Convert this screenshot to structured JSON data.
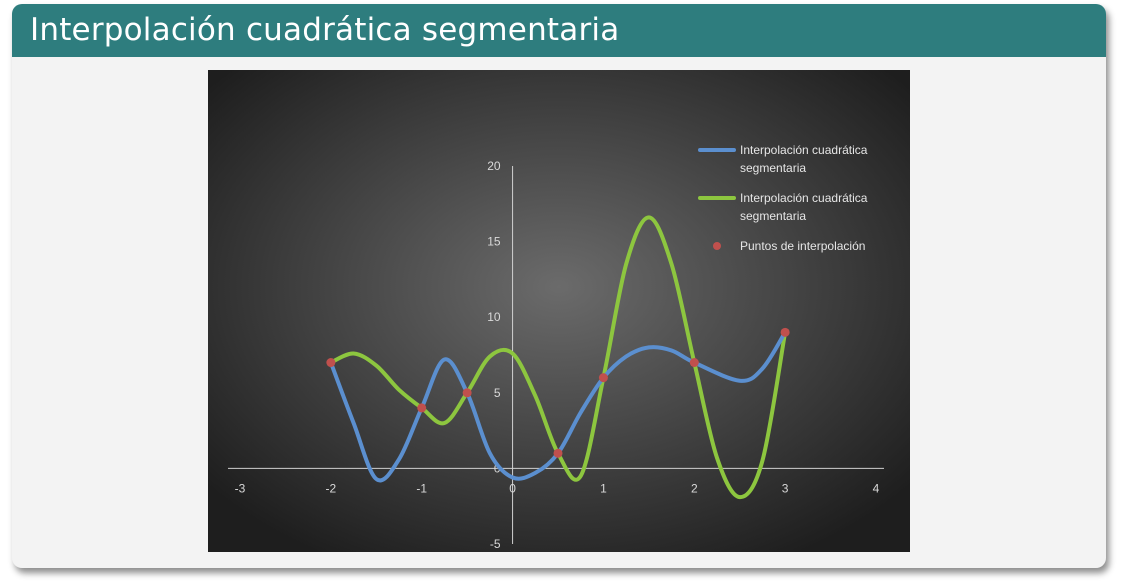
{
  "slide": {
    "title": "Interpolación cuadrática segmentaria"
  },
  "chart_data": {
    "type": "scatter",
    "xlim": [
      -3,
      4
    ],
    "ylim": [
      -5,
      20
    ],
    "x_ticks": [
      -3,
      -2,
      -1,
      0,
      1,
      2,
      3,
      4
    ],
    "y_ticks": [
      -5,
      0,
      5,
      10,
      15,
      20
    ],
    "grid": false,
    "legend_position": "top-right",
    "colors": {
      "background_center": "#6b6b6b",
      "background_edge": "#1e1e1e",
      "axis": "#d0d0d0"
    },
    "series": [
      {
        "name": "Interpolación cuadrática segmentaria",
        "kind": "line",
        "color": "#5b8fcf",
        "points": [
          [
            -2,
            7
          ],
          [
            -1.75,
            3
          ],
          [
            -1.5,
            -0.7
          ],
          [
            -1.25,
            0.6
          ],
          [
            -1,
            4
          ],
          [
            -0.75,
            7.2
          ],
          [
            -0.5,
            5
          ],
          [
            -0.25,
            1
          ],
          [
            0,
            -0.6
          ],
          [
            0.25,
            -0.3
          ],
          [
            0.5,
            1
          ],
          [
            0.75,
            3.7
          ],
          [
            1,
            6
          ],
          [
            1.25,
            7.4
          ],
          [
            1.5,
            8
          ],
          [
            1.75,
            7.8
          ],
          [
            2,
            7
          ],
          [
            2.5,
            5.8
          ],
          [
            2.75,
            6.6
          ],
          [
            3,
            9
          ]
        ]
      },
      {
        "name": "Interpolación cuadrática segmentaria",
        "kind": "line",
        "color": "#8dc63f",
        "points": [
          [
            -2,
            7
          ],
          [
            -1.75,
            7.6
          ],
          [
            -1.5,
            6.8
          ],
          [
            -1.25,
            5.2
          ],
          [
            -1,
            4
          ],
          [
            -0.75,
            3
          ],
          [
            -0.5,
            5
          ],
          [
            -0.25,
            7.4
          ],
          [
            0,
            7.6
          ],
          [
            0.25,
            4.8
          ],
          [
            0.5,
            1
          ],
          [
            0.75,
            -0.5
          ],
          [
            1,
            6
          ],
          [
            1.25,
            13.5
          ],
          [
            1.5,
            16.6
          ],
          [
            1.75,
            13.5
          ],
          [
            2,
            7
          ],
          [
            2.25,
            0.7
          ],
          [
            2.5,
            -1.9
          ],
          [
            2.75,
            0.5
          ],
          [
            3,
            9
          ]
        ]
      },
      {
        "name": "Puntos de interpolación",
        "kind": "scatter",
        "color": "#c0504d",
        "points": [
          [
            -2,
            7
          ],
          [
            -1,
            4
          ],
          [
            -0.5,
            5
          ],
          [
            0.5,
            1
          ],
          [
            1,
            6
          ],
          [
            2,
            7
          ],
          [
            3,
            9
          ]
        ]
      }
    ]
  }
}
